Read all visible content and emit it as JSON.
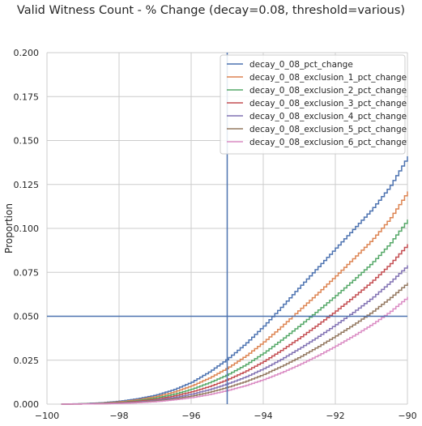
{
  "chart_data": {
    "type": "line",
    "title": "Valid Witness Count - % Change (decay=0.08, threshold=various)",
    "xlabel": "",
    "ylabel": "Proportion",
    "xlim": [
      -100,
      -90
    ],
    "ylim": [
      0,
      0.2
    ],
    "xticks": [
      -100,
      -98,
      -96,
      -94,
      -92,
      -90
    ],
    "xtick_labels": [
      "−100",
      "−98",
      "−96",
      "−94",
      "−92",
      "−90"
    ],
    "yticks": [
      0,
      0.025,
      0.05,
      0.075,
      0.1,
      0.125,
      0.15,
      0.175,
      0.2
    ],
    "ytick_labels": [
      "0.000",
      "0.025",
      "0.050",
      "0.075",
      "0.100",
      "0.125",
      "0.150",
      "0.175",
      "0.200"
    ],
    "grid": true,
    "legend_position": "top-right",
    "reference_lines": {
      "vertical_x": -95,
      "horizontal_y": 0.05,
      "color": "#4c72b0"
    },
    "series": [
      {
        "name": "decay_0_08_pct_change",
        "color": "#4c72b0",
        "x": [
          -99.6,
          -99,
          -98.5,
          -98,
          -97.5,
          -97,
          -96.5,
          -96,
          -95.5,
          -95,
          -94.5,
          -94,
          -93.5,
          -93,
          -92.5,
          -92,
          -91.5,
          -91,
          -90.5,
          -90
        ],
        "y": [
          0,
          0.0003,
          0.0008,
          0.0017,
          0.0031,
          0.0051,
          0.0082,
          0.0125,
          0.0185,
          0.0258,
          0.0345,
          0.0445,
          0.0555,
          0.0668,
          0.0778,
          0.0888,
          0.0998,
          0.1108,
          0.1238,
          0.141
        ]
      },
      {
        "name": "decay_0_08_exclusion_1_pct_change",
        "color": "#dd8452",
        "x": [
          -99.6,
          -99,
          -98.5,
          -98,
          -97.5,
          -97,
          -96.5,
          -96,
          -95.5,
          -95,
          -94.5,
          -94,
          -93.5,
          -93,
          -92.5,
          -92,
          -91.5,
          -91,
          -90.5,
          -90
        ],
        "y": [
          0,
          0.0002,
          0.0006,
          0.0013,
          0.0025,
          0.0043,
          0.0068,
          0.0104,
          0.015,
          0.0206,
          0.0274,
          0.0354,
          0.0443,
          0.0538,
          0.0632,
          0.073,
          0.0831,
          0.0933,
          0.1055,
          0.121
        ]
      },
      {
        "name": "decay_0_08_exclusion_2_pct_change",
        "color": "#55a868",
        "x": [
          -99.6,
          -99,
          -98.5,
          -98,
          -97.5,
          -97,
          -96.5,
          -96,
          -95.5,
          -95,
          -94.5,
          -94,
          -93.5,
          -93,
          -92.5,
          -92,
          -91.5,
          -91,
          -90.5,
          -90
        ],
        "y": [
          0,
          0.0002,
          0.0005,
          0.001,
          0.002,
          0.0035,
          0.0056,
          0.0085,
          0.0123,
          0.0168,
          0.0224,
          0.0291,
          0.0367,
          0.0448,
          0.0532,
          0.0618,
          0.0708,
          0.0802,
          0.0913,
          0.105
        ]
      },
      {
        "name": "decay_0_08_exclusion_3_pct_change",
        "color": "#c44e52",
        "x": [
          -99.6,
          -99,
          -98.5,
          -98,
          -97.5,
          -97,
          -96.5,
          -96,
          -95.5,
          -95,
          -94.5,
          -94,
          -93.5,
          -93,
          -92.5,
          -92,
          -91.5,
          -91,
          -90.5,
          -90
        ],
        "y": [
          0,
          0.0001,
          0.0004,
          0.0008,
          0.0016,
          0.0028,
          0.0046,
          0.007,
          0.0101,
          0.014,
          0.0187,
          0.0243,
          0.0308,
          0.0378,
          0.0452,
          0.053,
          0.0612,
          0.0697,
          0.0795,
          0.091
        ]
      },
      {
        "name": "decay_0_08_exclusion_4_pct_change",
        "color": "#8172b3",
        "x": [
          -99.6,
          -99,
          -98.5,
          -98,
          -97.5,
          -97,
          -96.5,
          -96,
          -95.5,
          -95,
          -94.5,
          -94,
          -93.5,
          -93,
          -92.5,
          -92,
          -91.5,
          -91,
          -90.5,
          -90
        ],
        "y": [
          0,
          0.0001,
          0.0003,
          0.0006,
          0.0012,
          0.0022,
          0.0037,
          0.0057,
          0.0083,
          0.0116,
          0.0155,
          0.0202,
          0.0257,
          0.0318,
          0.0383,
          0.0452,
          0.0525,
          0.0603,
          0.0692,
          0.079
        ]
      },
      {
        "name": "decay_0_08_exclusion_5_pct_change",
        "color": "#937860",
        "x": [
          -99.6,
          -99,
          -98.5,
          -98,
          -97.5,
          -97,
          -96.5,
          -96,
          -95.5,
          -95,
          -94.5,
          -94,
          -93.5,
          -93,
          -92.5,
          -92,
          -91.5,
          -91,
          -90.5,
          -90
        ],
        "y": [
          0,
          0.0001,
          0.0002,
          0.0005,
          0.001,
          0.0018,
          0.003,
          0.0046,
          0.0068,
          0.0096,
          0.0129,
          0.0169,
          0.0216,
          0.0268,
          0.0326,
          0.0388,
          0.0453,
          0.0523,
          0.0603,
          0.069
        ]
      },
      {
        "name": "decay_0_08_exclusion_6_pct_change",
        "color": "#da8bc3",
        "x": [
          -99.6,
          -99,
          -98.5,
          -98,
          -97.5,
          -97,
          -96.5,
          -96,
          -95.5,
          -95,
          -94.5,
          -94,
          -93.5,
          -93,
          -92.5,
          -92,
          -91.5,
          -91,
          -90.5,
          -90
        ],
        "y": [
          0,
          0.0001,
          0.0002,
          0.0004,
          0.0008,
          0.0014,
          0.0024,
          0.0037,
          0.0055,
          0.0078,
          0.0106,
          0.014,
          0.018,
          0.0226,
          0.0276,
          0.0331,
          0.039,
          0.0453,
          0.0525,
          0.061
        ]
      }
    ]
  }
}
